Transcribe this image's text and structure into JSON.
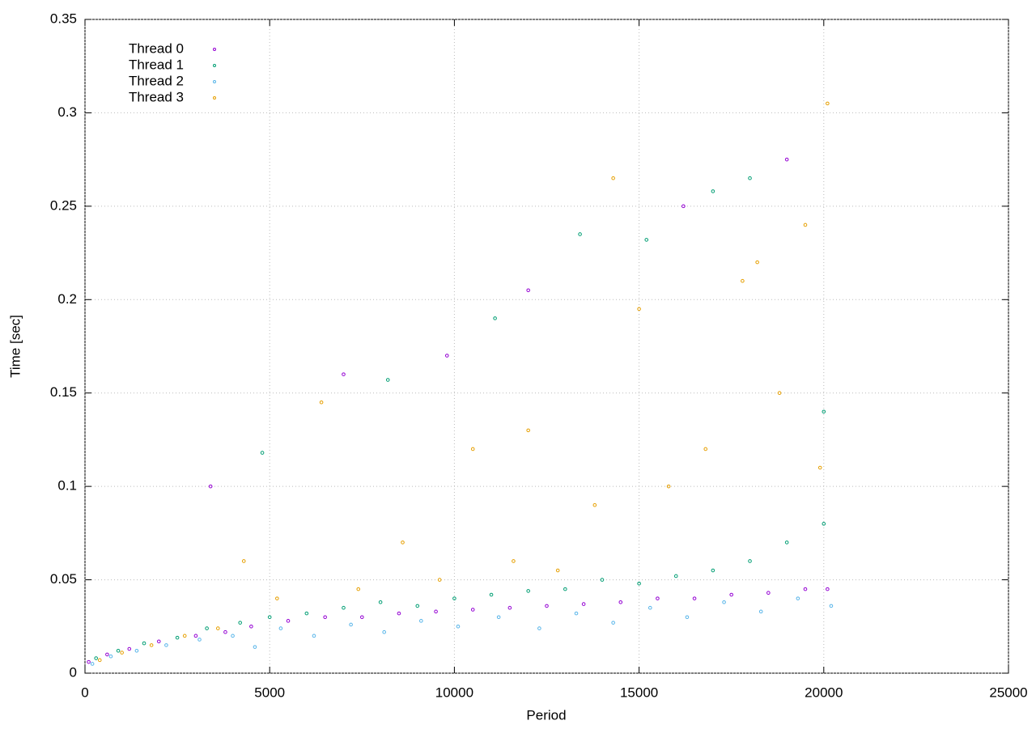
{
  "chart_data": {
    "type": "scatter",
    "xlabel": "Period",
    "ylabel": "Time [sec]",
    "xlim": [
      0,
      25000
    ],
    "ylim": [
      0,
      0.35
    ],
    "xticks": [
      0,
      5000,
      10000,
      15000,
      20000,
      25000
    ],
    "yticks": [
      0,
      0.05,
      0.1,
      0.15,
      0.2,
      0.25,
      0.3,
      0.35
    ],
    "grid": true,
    "legend": "top-left",
    "series": [
      {
        "name": "Thread 0",
        "color": "#9400d3",
        "x": [
          100,
          600,
          1200,
          2000,
          3000,
          3800,
          4500,
          5500,
          6500,
          7500,
          8500,
          9500,
          10500,
          11500,
          12500,
          13500,
          14500,
          15500,
          16500,
          17500,
          18500,
          19500,
          20100,
          3400,
          7000,
          9800,
          12000,
          16200,
          19000
        ],
        "y": [
          0.006,
          0.01,
          0.013,
          0.017,
          0.02,
          0.022,
          0.025,
          0.028,
          0.03,
          0.03,
          0.032,
          0.033,
          0.034,
          0.035,
          0.036,
          0.037,
          0.038,
          0.04,
          0.04,
          0.042,
          0.043,
          0.045,
          0.045,
          0.1,
          0.16,
          0.17,
          0.205,
          0.25,
          0.275
        ]
      },
      {
        "name": "Thread 1",
        "color": "#009e73",
        "x": [
          300,
          900,
          1600,
          2500,
          3300,
          4200,
          5000,
          6000,
          7000,
          8000,
          9000,
          10000,
          11000,
          12000,
          13000,
          14000,
          15000,
          16000,
          17000,
          18000,
          19000,
          20000,
          4800,
          8200,
          11100,
          13400,
          15200,
          17000,
          18000,
          20000
        ],
        "y": [
          0.008,
          0.012,
          0.016,
          0.019,
          0.024,
          0.027,
          0.03,
          0.032,
          0.035,
          0.038,
          0.036,
          0.04,
          0.042,
          0.044,
          0.045,
          0.05,
          0.048,
          0.052,
          0.055,
          0.06,
          0.07,
          0.08,
          0.118,
          0.157,
          0.19,
          0.235,
          0.232,
          0.258,
          0.265,
          0.14
        ]
      },
      {
        "name": "Thread 2",
        "color": "#56b4e9",
        "x": [
          200,
          700,
          1400,
          2200,
          3100,
          4000,
          4600,
          5300,
          6200,
          7200,
          8100,
          9100,
          10100,
          11200,
          12300,
          13300,
          14300,
          15300,
          16300,
          17300,
          18300,
          19300,
          20200
        ],
        "y": [
          0.005,
          0.009,
          0.012,
          0.015,
          0.018,
          0.02,
          0.014,
          0.024,
          0.02,
          0.026,
          0.022,
          0.028,
          0.025,
          0.03,
          0.024,
          0.032,
          0.027,
          0.035,
          0.03,
          0.038,
          0.033,
          0.04,
          0.036
        ]
      },
      {
        "name": "Thread 3",
        "color": "#e69f00",
        "x": [
          400,
          1000,
          1800,
          2700,
          3600,
          4300,
          5200,
          6400,
          7400,
          8600,
          9600,
          10500,
          11600,
          12000,
          12800,
          13800,
          14300,
          15000,
          15800,
          16800,
          17800,
          18200,
          18800,
          19500,
          20100,
          19900
        ],
        "y": [
          0.007,
          0.011,
          0.015,
          0.02,
          0.024,
          0.06,
          0.04,
          0.145,
          0.045,
          0.07,
          0.05,
          0.12,
          0.06,
          0.13,
          0.055,
          0.09,
          0.265,
          0.195,
          0.1,
          0.12,
          0.21,
          0.22,
          0.15,
          0.24,
          0.305,
          0.11
        ]
      }
    ]
  }
}
